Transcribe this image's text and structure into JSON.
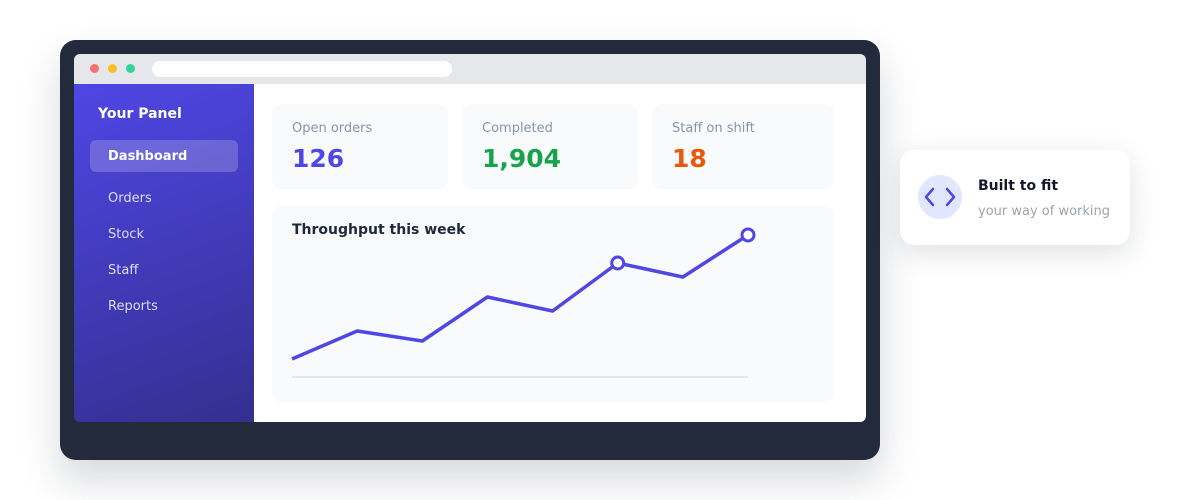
{
  "sidebar": {
    "title": "Your Panel",
    "nav": [
      "Dashboard",
      "Orders",
      "Stock",
      "Staff",
      "Reports"
    ]
  },
  "stats": [
    {
      "label": "Open orders",
      "value": "126",
      "color": "#4f46e5"
    },
    {
      "label": "Completed",
      "value": "1,904",
      "color": "#16a34a"
    },
    {
      "label": "Staff on shift",
      "value": "18",
      "color": "#ea580c"
    }
  ],
  "chart": {
    "type": "line",
    "title": "Throughput this week",
    "values": [
      18,
      46,
      36,
      80,
      66,
      114,
      100,
      142
    ],
    "ylim": [
      0,
      150
    ],
    "color": "#4f46e5",
    "markers": [
      5,
      7
    ]
  },
  "callout": {
    "title": "Built to fit",
    "subtitle": "your way of working"
  }
}
